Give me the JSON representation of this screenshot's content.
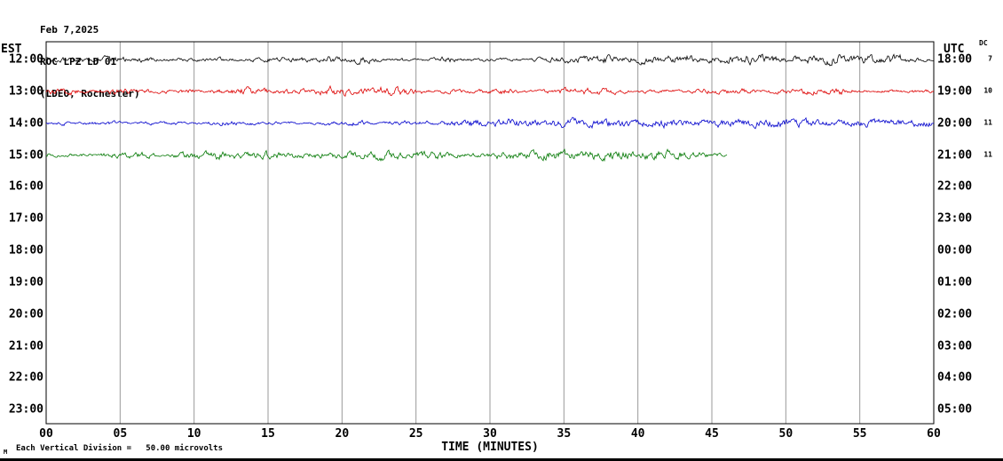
{
  "header": {
    "date": "Feb 7,2025",
    "station": "ROC LPZ LD 01",
    "location": "(LDEO, Rochester)"
  },
  "axis": {
    "left_timezone": "EST",
    "right_timezone": "UTC",
    "dc_header": "DC",
    "x_axis_label": "TIME (MINUTES)",
    "x_ticks": [
      "00",
      "05",
      "10",
      "15",
      "20",
      "25",
      "30",
      "35",
      "40",
      "45",
      "50",
      "55",
      "60"
    ]
  },
  "footer": {
    "mark": "M",
    "scale_note": "Each Vertical Division =   50.00 microvolts"
  },
  "colors": {
    "background": "#ffffff",
    "border": "#000000",
    "grid": "#999999"
  },
  "chart_data": {
    "type": "line",
    "title": "ROC LPZ LD 01 (LDEO, Rochester) helicorder record, Feb 7,2025",
    "x_label": "TIME (MINUTES)",
    "x_range_minutes": [
      0,
      60
    ],
    "x_tick_step_minutes": 5,
    "grid": "vertical-only",
    "y_scale_note": "Each Vertical Division = 50.00 microvolts",
    "rows": [
      {
        "est": "12:00",
        "utc": "18:00",
        "dc": "7",
        "color": "#000000",
        "trace": true,
        "start_min": 0,
        "end_min": 60,
        "noise_amplitude": 3.2,
        "description": "continuous background microseismic noise"
      },
      {
        "est": "13:00",
        "utc": "19:00",
        "dc": "10",
        "color": "#dd0000",
        "trace": true,
        "start_min": 0,
        "end_min": 60,
        "noise_amplitude": 3.4,
        "description": "continuous background microseismic noise"
      },
      {
        "est": "14:00",
        "utc": "20:00",
        "dc": "11",
        "color": "#0000cc",
        "trace": true,
        "start_min": 0,
        "end_min": 60,
        "noise_amplitude": 2.7,
        "description": "continuous background microseismic noise"
      },
      {
        "est": "15:00",
        "utc": "21:00",
        "dc": "11",
        "color": "#007700",
        "trace": true,
        "start_min": 0,
        "end_min": 46,
        "noise_amplitude": 3.2,
        "description": "noise trace ends ~46 minutes (recording in progress)"
      },
      {
        "est": "16:00",
        "utc": "22:00",
        "dc": "",
        "color": null,
        "trace": false,
        "start_min": 0,
        "end_min": 0,
        "noise_amplitude": 0,
        "description": "no data yet"
      },
      {
        "est": "17:00",
        "utc": "23:00",
        "dc": "",
        "color": null,
        "trace": false,
        "start_min": 0,
        "end_min": 0,
        "noise_amplitude": 0,
        "description": "no data yet"
      },
      {
        "est": "18:00",
        "utc": "00:00",
        "dc": "",
        "color": null,
        "trace": false,
        "start_min": 0,
        "end_min": 0,
        "noise_amplitude": 0,
        "description": "no data yet"
      },
      {
        "est": "19:00",
        "utc": "01:00",
        "dc": "",
        "color": null,
        "trace": false,
        "start_min": 0,
        "end_min": 0,
        "noise_amplitude": 0,
        "description": "no data yet"
      },
      {
        "est": "20:00",
        "utc": "02:00",
        "dc": "",
        "color": null,
        "trace": false,
        "start_min": 0,
        "end_min": 0,
        "noise_amplitude": 0,
        "description": "no data yet"
      },
      {
        "est": "21:00",
        "utc": "03:00",
        "dc": "",
        "color": null,
        "trace": false,
        "start_min": 0,
        "end_min": 0,
        "noise_amplitude": 0,
        "description": "no data yet"
      },
      {
        "est": "22:00",
        "utc": "04:00",
        "dc": "",
        "color": null,
        "trace": false,
        "start_min": 0,
        "end_min": 0,
        "noise_amplitude": 0,
        "description": "no data yet"
      },
      {
        "est": "23:00",
        "utc": "05:00",
        "dc": "",
        "color": null,
        "trace": false,
        "start_min": 0,
        "end_min": 0,
        "noise_amplitude": 0,
        "description": "no data yet"
      }
    ]
  }
}
